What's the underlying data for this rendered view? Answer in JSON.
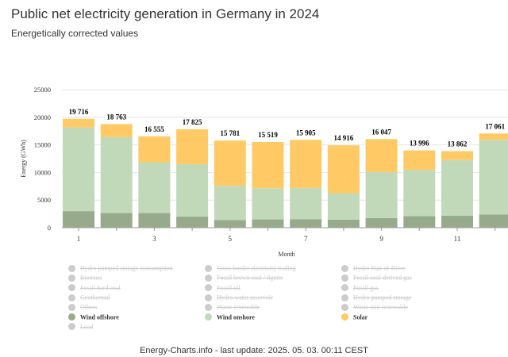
{
  "header": {
    "title": "Public net electricity generation in Germany in 2024",
    "subtitle": "Energetically corrected values"
  },
  "footer": "Energy-Charts.info - last update: 2025. 05. 03. 00:11 CEST",
  "chart_data": {
    "type": "bar",
    "stacked": true,
    "xlabel": "Month",
    "ylabel": "Energy (GWh)",
    "ylim": [
      0,
      25000
    ],
    "yticks": [
      "0",
      "5000",
      "10000",
      "15000",
      "20000",
      "25000"
    ],
    "ytick_values": [
      0,
      5000,
      10000,
      15000,
      20000,
      25000
    ],
    "categories": [
      "1",
      "2",
      "3",
      "4",
      "5",
      "6",
      "7",
      "8",
      "9",
      "10",
      "11",
      "12"
    ],
    "xtick_labels": [
      "1",
      "",
      "3",
      "",
      "5",
      "",
      "7",
      "",
      "9",
      "",
      "11",
      ""
    ],
    "totals": [
      19716,
      18763,
      16555,
      17825,
      15781,
      15519,
      15905,
      14916,
      16047,
      13996,
      13862,
      17061
    ],
    "total_labels": [
      "19 716",
      "18 763",
      "16 555",
      "17 825",
      "15 781",
      "15 519",
      "15 905",
      "14 916",
      "16 047",
      "13 996",
      "13 862",
      "17 061"
    ],
    "series": [
      {
        "name": "Wind offshore",
        "color": "#98aa8c",
        "values": [
          3000,
          2650,
          2650,
          2000,
          1400,
          1500,
          1550,
          1450,
          1750,
          2100,
          2150,
          2400
        ]
      },
      {
        "name": "Wind onshore",
        "color": "#c2d9b9",
        "values": [
          15166,
          13750,
          9200,
          9500,
          6200,
          5650,
          5650,
          4800,
          8300,
          8400,
          10100,
          13500
        ]
      },
      {
        "name": "Solar",
        "color": "#ffca65",
        "values": [
          1550,
          2363,
          4705,
          6325,
          8181,
          8369,
          8705,
          8666,
          5997,
          3496,
          1612,
          1161
        ]
      }
    ],
    "grid": true,
    "legend_placement": "bottom"
  },
  "legend": [
    {
      "label": "Hydro pumped storage consumption",
      "color": "#cccccc",
      "active": false
    },
    {
      "label": "Cross border electricity trading",
      "color": "#cccccc",
      "active": false
    },
    {
      "label": "Hydro Run-of-River",
      "color": "#cccccc",
      "active": false
    },
    {
      "label": "Biomass",
      "color": "#cccccc",
      "active": false
    },
    {
      "label": "Fossil brown coal / lignite",
      "color": "#cccccc",
      "active": false
    },
    {
      "label": "Fossil coal-derived gas",
      "color": "#cccccc",
      "active": false
    },
    {
      "label": "Fossil hard coal",
      "color": "#cccccc",
      "active": false
    },
    {
      "label": "Fossil oil",
      "color": "#cccccc",
      "active": false
    },
    {
      "label": "Fossil gas",
      "color": "#cccccc",
      "active": false
    },
    {
      "label": "Geothermal",
      "color": "#cccccc",
      "active": false
    },
    {
      "label": "Hydro water reservoir",
      "color": "#cccccc",
      "active": false
    },
    {
      "label": "Hydro pumped storage",
      "color": "#cccccc",
      "active": false
    },
    {
      "label": "Others",
      "color": "#cccccc",
      "active": false
    },
    {
      "label": "Waste renewable",
      "color": "#cccccc",
      "active": false
    },
    {
      "label": "Waste non-renewable",
      "color": "#cccccc",
      "active": false
    },
    {
      "label": "Wind offshore",
      "color": "#98aa8c",
      "active": true
    },
    {
      "label": "Wind onshore",
      "color": "#c2d9b9",
      "active": true
    },
    {
      "label": "Solar",
      "color": "#ffca65",
      "active": true
    },
    {
      "label": "Load",
      "color": "#cccccc",
      "active": false
    }
  ]
}
